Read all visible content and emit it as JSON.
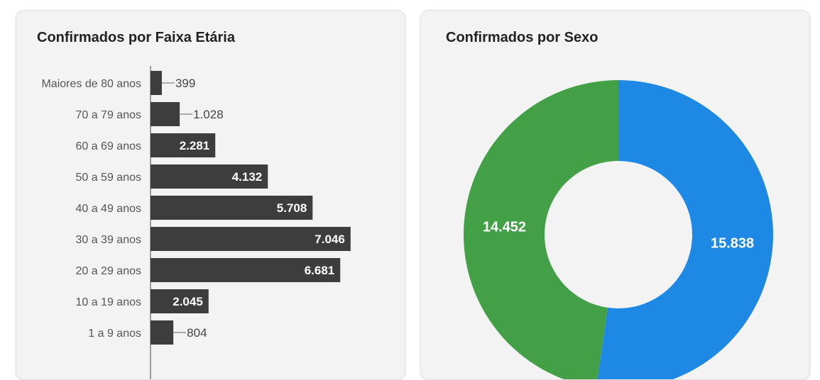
{
  "chart_data": [
    {
      "type": "bar",
      "orientation": "horizontal",
      "title": "Confirmados por Faixa Etária",
      "categories": [
        "Maiores de 80 anos",
        "70 a 79 anos",
        "60 a 69 anos",
        "50 a 59 anos",
        "40 a 49 anos",
        "30 a 39 anos",
        "20 a 29 anos",
        "10 a 19 anos",
        "1 a 9 anos"
      ],
      "values": [
        399,
        1028,
        2281,
        4132,
        5708,
        7046,
        6681,
        2045,
        804
      ],
      "value_labels": [
        "399",
        "1.028",
        "2.281",
        "4.132",
        "5.708",
        "7.046",
        "6.681",
        "2.045",
        "804"
      ],
      "bar_color": "#3d3d3d",
      "grid": false,
      "legend": "none"
    },
    {
      "type": "pie",
      "style": "donut",
      "title": "Confirmados por Sexo",
      "slices": [
        {
          "value": 15838,
          "label": "15.838",
          "color": "#1e88e5"
        },
        {
          "value": 14452,
          "label": "14.452",
          "color": "#43a047"
        }
      ],
      "legend": "none"
    }
  ]
}
